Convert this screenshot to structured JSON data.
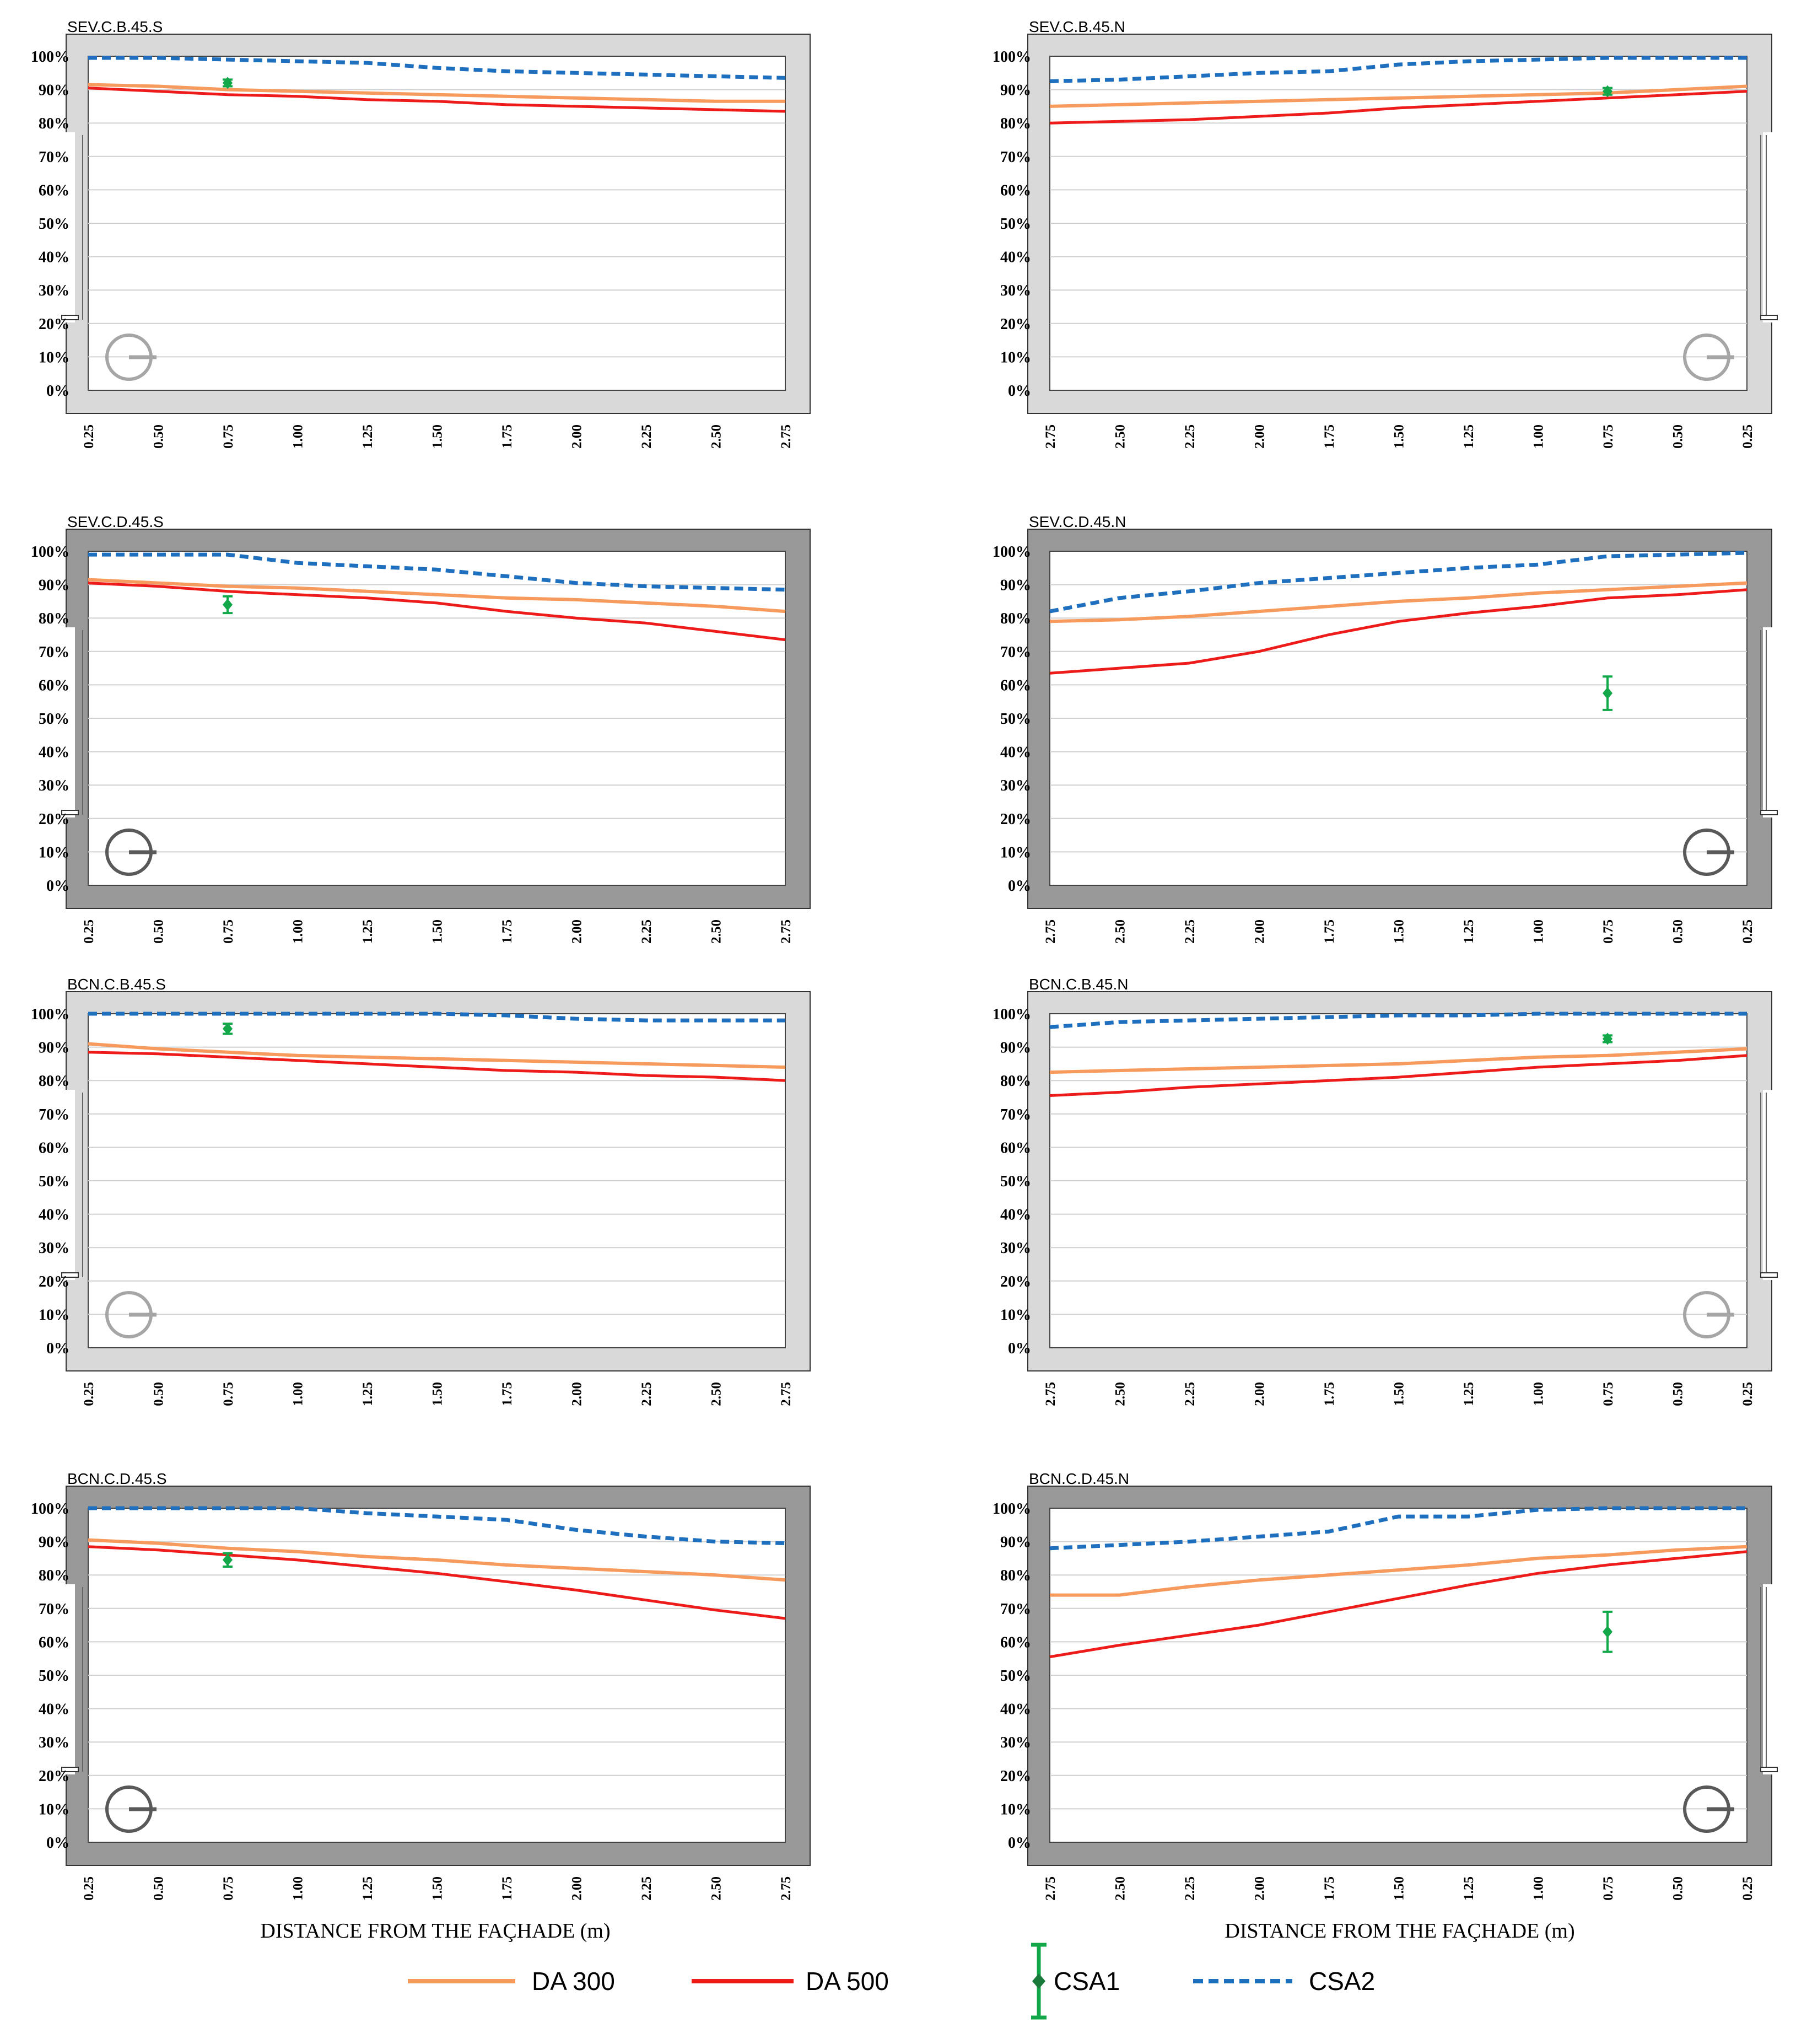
{
  "colors": {
    "da300": "#F79A5D",
    "da500": "#EE1B1B",
    "csa1": "#12A84A",
    "csa2": "#1F6FBF",
    "frame_light": "#D9D9D9",
    "frame_dark": "#999999",
    "grid": "#D0D0D0",
    "compass_light": "#A6A6A6",
    "compass_dark": "#595959"
  },
  "figure": {
    "xlabel": "DISTANCE FROM THE FAÇHADE (m)"
  },
  "legend": {
    "da300": "DA 300",
    "da500": "DA 500",
    "csa1": "CSA1",
    "csa2": "CSA2"
  },
  "chart_data": [
    {
      "type": "line",
      "title": "SEV.C.B.45.S",
      "frame": "light",
      "orientation": "S",
      "ylim": [
        0,
        100
      ],
      "yticks": [
        "100%",
        "90%",
        "80%",
        "70%",
        "60%",
        "50%",
        "40%",
        "30%",
        "20%",
        "10%",
        "0%"
      ],
      "x": [
        0.25,
        0.5,
        0.75,
        1.0,
        1.25,
        1.5,
        1.75,
        2.0,
        2.25,
        2.5,
        2.75
      ],
      "xtick_labels": [
        "0.25",
        "0.50",
        "0.75",
        "1.00",
        "1.25",
        "1.50",
        "1.75",
        "2.00",
        "2.25",
        "2.50",
        "2.75"
      ],
      "xlim": [
        0.25,
        2.75
      ],
      "series": [
        {
          "name": "DA 300",
          "key": "da300",
          "values": [
            91.5,
            91,
            90,
            89.5,
            89,
            88.5,
            88,
            87.5,
            87,
            86.5,
            86.5
          ]
        },
        {
          "name": "DA 500",
          "key": "da500",
          "values": [
            90.5,
            89.5,
            88.5,
            88,
            87,
            86.5,
            85.5,
            85,
            84.5,
            84,
            83.5
          ]
        },
        {
          "name": "CSA2",
          "key": "csa2",
          "values": [
            99.5,
            99.5,
            99,
            98.5,
            98,
            96.5,
            95.5,
            95,
            94.5,
            94,
            93.5
          ]
        }
      ],
      "csa1": {
        "x": 0.75,
        "y": 92,
        "err": 1
      }
    },
    {
      "type": "line",
      "title": "SEV.C.B.45.N",
      "frame": "light",
      "orientation": "N",
      "ylim": [
        0,
        100
      ],
      "yticks": [
        "100%",
        "90%",
        "80%",
        "70%",
        "60%",
        "50%",
        "40%",
        "30%",
        "20%",
        "10%",
        "0%"
      ],
      "x": [
        2.75,
        2.5,
        2.25,
        2.0,
        1.75,
        1.5,
        1.25,
        1.0,
        0.75,
        0.5,
        0.25
      ],
      "xtick_labels": [
        "2.75",
        "2.50",
        "2.25",
        "2.00",
        "1.75",
        "1.50",
        "1.25",
        "1.00",
        "0.75",
        "0.50",
        "0.25"
      ],
      "xlim": [
        2.75,
        0.25
      ],
      "series": [
        {
          "name": "DA 300",
          "key": "da300",
          "values": [
            85,
            85.5,
            86,
            86.5,
            87,
            87.5,
            88,
            88.5,
            89,
            90,
            91
          ]
        },
        {
          "name": "DA 500",
          "key": "da500",
          "values": [
            80,
            80.5,
            81,
            82,
            83,
            84.5,
            85.5,
            86.5,
            87.5,
            88.5,
            89.5
          ]
        },
        {
          "name": "CSA2",
          "key": "csa2",
          "values": [
            92.5,
            93,
            94,
            95,
            95.5,
            97.5,
            98.5,
            99,
            99.5,
            99.5,
            99.5
          ]
        }
      ],
      "csa1": {
        "x": 0.75,
        "y": 89.5,
        "err": 1
      }
    },
    {
      "type": "line",
      "title": "SEV.C.D.45.S",
      "frame": "dark",
      "orientation": "S",
      "ylim": [
        0,
        100
      ],
      "yticks": [
        "100%",
        "90%",
        "80%",
        "70%",
        "60%",
        "50%",
        "40%",
        "30%",
        "20%",
        "10%",
        "0%"
      ],
      "x": [
        0.25,
        0.5,
        0.75,
        1.0,
        1.25,
        1.5,
        1.75,
        2.0,
        2.25,
        2.5,
        2.75
      ],
      "xtick_labels": [
        "0.25",
        "0.50",
        "0.75",
        "1.00",
        "1.25",
        "1.50",
        "1.75",
        "2.00",
        "2.25",
        "2.50",
        "2.75"
      ],
      "xlim": [
        0.25,
        2.75
      ],
      "series": [
        {
          "name": "DA 300",
          "key": "da300",
          "values": [
            91.5,
            90.5,
            89.5,
            89,
            88,
            87,
            86,
            85.5,
            84.5,
            83.5,
            82
          ]
        },
        {
          "name": "DA 500",
          "key": "da500",
          "values": [
            90.5,
            89.5,
            88,
            87,
            86,
            84.5,
            82,
            80,
            78.5,
            76,
            73.5
          ]
        },
        {
          "name": "CSA2",
          "key": "csa2",
          "values": [
            99,
            99,
            99,
            96.5,
            95.5,
            94.5,
            92.5,
            90.5,
            89.5,
            89,
            88.5
          ]
        }
      ],
      "csa1": {
        "x": 0.75,
        "y": 84,
        "err": 2.5
      }
    },
    {
      "type": "line",
      "title": "SEV.C.D.45.N",
      "frame": "dark",
      "orientation": "N",
      "ylim": [
        0,
        100
      ],
      "yticks": [
        "100%",
        "90%",
        "80%",
        "70%",
        "60%",
        "50%",
        "40%",
        "30%",
        "20%",
        "10%",
        "0%"
      ],
      "x": [
        2.75,
        2.5,
        2.25,
        2.0,
        1.75,
        1.5,
        1.25,
        1.0,
        0.75,
        0.5,
        0.25
      ],
      "xtick_labels": [
        "2.75",
        "2.50",
        "2.25",
        "2.00",
        "1.75",
        "1.50",
        "1.25",
        "1.00",
        "0.75",
        "0.50",
        "0.25"
      ],
      "xlim": [
        2.75,
        0.25
      ],
      "series": [
        {
          "name": "DA 300",
          "key": "da300",
          "values": [
            79,
            79.5,
            80.5,
            82,
            83.5,
            85,
            86,
            87.5,
            88.5,
            89.5,
            90.5
          ]
        },
        {
          "name": "DA 500",
          "key": "da500",
          "values": [
            63.5,
            65,
            66.5,
            70,
            75,
            79,
            81.5,
            83.5,
            86,
            87,
            88.5
          ]
        },
        {
          "name": "CSA2",
          "key": "csa2",
          "values": [
            82,
            86,
            88,
            90.5,
            92,
            93.5,
            95,
            96,
            98.5,
            99,
            99.5
          ]
        }
      ],
      "csa1": {
        "x": 0.75,
        "y": 57.5,
        "err": 5
      }
    },
    {
      "type": "line",
      "title": "BCN.C.B.45.S",
      "frame": "light",
      "orientation": "S",
      "ylim": [
        0,
        100
      ],
      "yticks": [
        "100%",
        "90%",
        "80%",
        "70%",
        "60%",
        "50%",
        "40%",
        "30%",
        "20%",
        "10%",
        "0%"
      ],
      "x": [
        0.25,
        0.5,
        0.75,
        1.0,
        1.25,
        1.5,
        1.75,
        2.0,
        2.25,
        2.5,
        2.75
      ],
      "xtick_labels": [
        "0.25",
        "0.50",
        "0.75",
        "1.00",
        "1.25",
        "1.50",
        "1.75",
        "2.00",
        "2.25",
        "2.50",
        "2.75"
      ],
      "xlim": [
        0.25,
        2.75
      ],
      "series": [
        {
          "name": "DA 300",
          "key": "da300",
          "values": [
            91,
            89.5,
            88.5,
            87.5,
            87,
            86.5,
            86,
            85.5,
            85,
            84.5,
            84
          ]
        },
        {
          "name": "DA 500",
          "key": "da500",
          "values": [
            88.5,
            88,
            87,
            86,
            85,
            84,
            83,
            82.5,
            81.5,
            81,
            80
          ]
        },
        {
          "name": "CSA2",
          "key": "csa2",
          "values": [
            100,
            100,
            100,
            100,
            100,
            100,
            99.5,
            98.5,
            98,
            98,
            98
          ]
        }
      ],
      "csa1": {
        "x": 0.75,
        "y": 95.5,
        "err": 1.5
      }
    },
    {
      "type": "line",
      "title": "BCN.C.B.45.N",
      "frame": "light",
      "orientation": "N",
      "ylim": [
        0,
        100
      ],
      "yticks": [
        "100%",
        "90%",
        "80%",
        "70%",
        "60%",
        "50%",
        "40%",
        "30%",
        "20%",
        "10%",
        "0%"
      ],
      "x": [
        2.75,
        2.5,
        2.25,
        2.0,
        1.75,
        1.5,
        1.25,
        1.0,
        0.75,
        0.5,
        0.25
      ],
      "xtick_labels": [
        "2.75",
        "2.50",
        "2.25",
        "2.00",
        "1.75",
        "1.50",
        "1.25",
        "1.00",
        "0.75",
        "0.50",
        "0.25"
      ],
      "xlim": [
        2.75,
        0.25
      ],
      "series": [
        {
          "name": "DA 300",
          "key": "da300",
          "values": [
            82.5,
            83,
            83.5,
            84,
            84.5,
            85,
            86,
            87,
            87.5,
            88.5,
            89.5
          ]
        },
        {
          "name": "DA 500",
          "key": "da500",
          "values": [
            75.5,
            76.5,
            78,
            79,
            80,
            81,
            82.5,
            84,
            85,
            86,
            87.5
          ]
        },
        {
          "name": "CSA2",
          "key": "csa2",
          "values": [
            96,
            97.5,
            98,
            98.5,
            99,
            99.5,
            99.5,
            100,
            100,
            100,
            100
          ]
        }
      ],
      "csa1": {
        "x": 0.75,
        "y": 92.5,
        "err": 1
      }
    },
    {
      "type": "line",
      "title": "BCN.C.D.45.S",
      "frame": "dark",
      "orientation": "S",
      "ylim": [
        0,
        100
      ],
      "yticks": [
        "100%",
        "90%",
        "80%",
        "70%",
        "60%",
        "50%",
        "40%",
        "30%",
        "20%",
        "10%",
        "0%"
      ],
      "x": [
        0.25,
        0.5,
        0.75,
        1.0,
        1.25,
        1.5,
        1.75,
        2.0,
        2.25,
        2.5,
        2.75
      ],
      "xtick_labels": [
        "0.25",
        "0.50",
        "0.75",
        "1.00",
        "1.25",
        "1.50",
        "1.75",
        "2.00",
        "2.25",
        "2.50",
        "2.75"
      ],
      "xlim": [
        0.25,
        2.75
      ],
      "series": [
        {
          "name": "DA 300",
          "key": "da300",
          "values": [
            90.5,
            89.5,
            88,
            87,
            85.5,
            84.5,
            83,
            82,
            81,
            80,
            78.5
          ]
        },
        {
          "name": "DA 500",
          "key": "da500",
          "values": [
            88.5,
            87.5,
            86,
            84.5,
            82.5,
            80.5,
            78,
            75.5,
            72.5,
            69.5,
            67
          ]
        },
        {
          "name": "CSA2",
          "key": "csa2",
          "values": [
            100,
            100,
            100,
            100,
            98.5,
            97.5,
            96.5,
            93.5,
            91.5,
            90,
            89.5
          ]
        }
      ],
      "csa1": {
        "x": 0.75,
        "y": 84.5,
        "err": 2
      }
    },
    {
      "type": "line",
      "title": "BCN.C.D.45.N",
      "frame": "dark",
      "orientation": "N",
      "ylim": [
        0,
        100
      ],
      "yticks": [
        "100%",
        "90%",
        "80%",
        "70%",
        "60%",
        "50%",
        "40%",
        "30%",
        "20%",
        "10%",
        "0%"
      ],
      "x": [
        2.75,
        2.5,
        2.25,
        2.0,
        1.75,
        1.5,
        1.25,
        1.0,
        0.75,
        0.5,
        0.25
      ],
      "xtick_labels": [
        "2.75",
        "2.50",
        "2.25",
        "2.00",
        "1.75",
        "1.50",
        "1.25",
        "1.00",
        "0.75",
        "0.50",
        "0.25"
      ],
      "xlim": [
        2.75,
        0.25
      ],
      "series": [
        {
          "name": "DA 300",
          "key": "da300",
          "values": [
            74,
            74,
            76.5,
            78.5,
            80,
            81.5,
            83,
            85,
            86,
            87.5,
            88.5
          ]
        },
        {
          "name": "DA 500",
          "key": "da500",
          "values": [
            55.5,
            59,
            62,
            65,
            69,
            73,
            77,
            80.5,
            83,
            85,
            87
          ]
        },
        {
          "name": "CSA2",
          "key": "csa2",
          "values": [
            88,
            89,
            90,
            91.5,
            93,
            97.5,
            97.5,
            99.5,
            100,
            100,
            100
          ]
        }
      ],
      "csa1": {
        "x": 0.75,
        "y": 63,
        "err": 6
      }
    }
  ]
}
